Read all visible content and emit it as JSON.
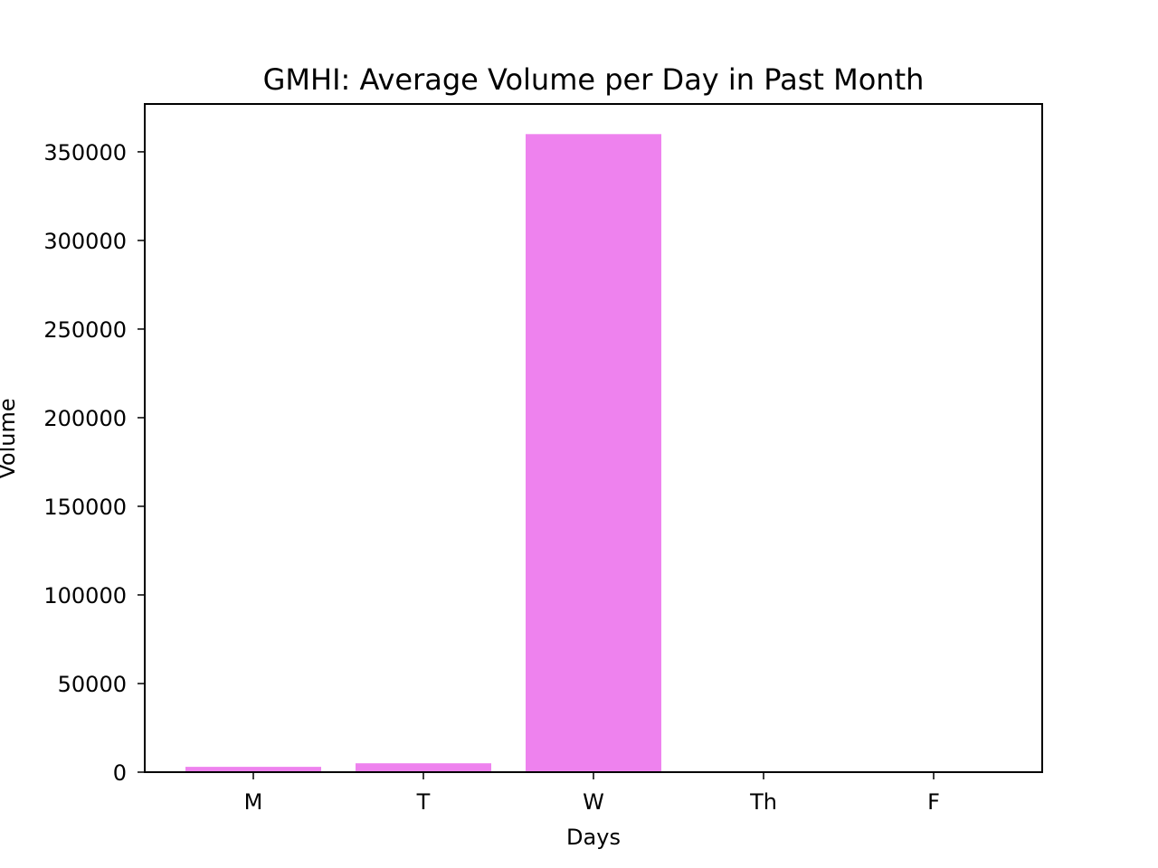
{
  "chart_data": {
    "type": "bar",
    "title": "GMHI: Average Volume per Day in Past Month",
    "xlabel": "Days",
    "ylabel": "Volume",
    "categories": [
      "M",
      "T",
      "W",
      "Th",
      "F"
    ],
    "values": [
      3000,
      5000,
      360000,
      0,
      0
    ],
    "ylim": [
      0,
      377000
    ],
    "yticks": [
      0,
      50000,
      100000,
      150000,
      200000,
      250000,
      300000,
      350000
    ],
    "ytick_labels": [
      "0",
      "50000",
      "100000",
      "150000",
      "200000",
      "250000",
      "300000",
      "350000"
    ],
    "bar_color": "#ee82ee",
    "grid": false,
    "legend": "none"
  }
}
